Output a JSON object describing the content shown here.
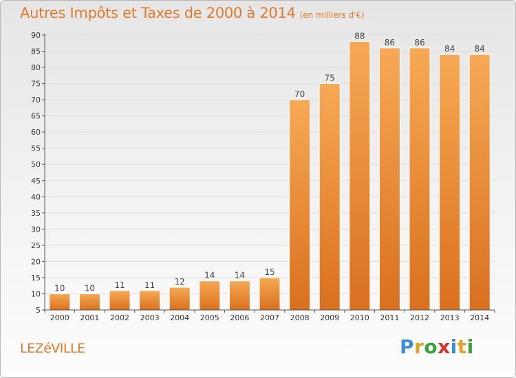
{
  "title": {
    "main": "Autres Impôts et Taxes de 2000 à 2014",
    "sub": "(en milliers d'€)"
  },
  "footer": {
    "location": "LEZéVILLE",
    "logo": {
      "letters": [
        "P",
        "r",
        "o",
        "x",
        "i",
        "t",
        "i"
      ],
      "colors": [
        "#3b8fd6",
        "#e0a323",
        "#3ba13b",
        "#d9342b",
        "#3b8fd6",
        "#e0a323",
        "#3ba13b"
      ]
    }
  },
  "colors": {
    "bar_top": "#f7a955",
    "bar_bottom": "#d9701e",
    "accent": "#e07a2b",
    "grid": "#dddddd",
    "axis": "#555555"
  },
  "chart_data": {
    "type": "bar",
    "categories": [
      "2000",
      "2001",
      "2002",
      "2003",
      "2004",
      "2005",
      "2006",
      "2007",
      "2008",
      "2009",
      "2010",
      "2011",
      "2012",
      "2013",
      "2014"
    ],
    "values": [
      10,
      10,
      11,
      11,
      12,
      14,
      14,
      15,
      70,
      75,
      88,
      86,
      86,
      84,
      84
    ],
    "title": "Autres Impôts et Taxes de 2000 à 2014",
    "subtitle": "(en milliers d'€)",
    "xlabel": "",
    "ylabel": "",
    "ylim": [
      5,
      90
    ],
    "yticks": [
      5,
      10,
      15,
      20,
      25,
      30,
      35,
      40,
      45,
      50,
      55,
      60,
      65,
      70,
      75,
      80,
      85,
      90
    ],
    "grid": true,
    "data_labels": true
  }
}
